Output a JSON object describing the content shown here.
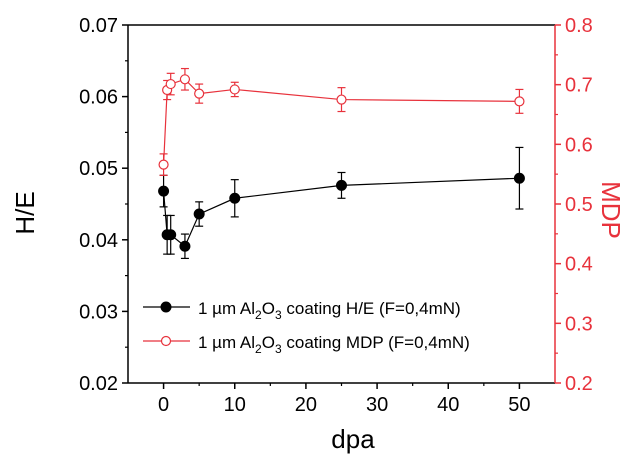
{
  "chart_data": {
    "type": "line",
    "xlabel": "dpa",
    "ylabel_left": "H/E",
    "ylabel_right": "MDP",
    "xlim": [
      -5,
      55
    ],
    "ylim_left": [
      0.02,
      0.07
    ],
    "ylim_right": [
      0.2,
      0.8
    ],
    "x_ticks": [
      0,
      10,
      20,
      30,
      40,
      50
    ],
    "y_ticks_left": [
      "0.02",
      "0.03",
      "0.04",
      "0.05",
      "0.06",
      "0.07"
    ],
    "y_ticks_right": [
      "0.2",
      "0.3",
      "0.4",
      "0.5",
      "0.6",
      "0.7",
      "0.8"
    ],
    "legend_position": "lower-center",
    "colors": {
      "left_axis": "#000000",
      "right_axis": "#e8323c",
      "he_series": "#000000",
      "mdp_series": "#e8323c"
    },
    "series": [
      {
        "key": "he",
        "name": "1 µm Al₂O₃ coating H/E (F=0,4mN)",
        "legend": {
          "pre": "1 µm Al",
          "sub1": "2",
          "mid": "O",
          "sub2": "3",
          "post": " coating H/E (F=0,4mN)"
        },
        "axis": "left",
        "marker": "filled-circle",
        "x": [
          0,
          0.5,
          1,
          3,
          5,
          10,
          25,
          50
        ],
        "y": [
          0.0468,
          0.0407,
          0.0407,
          0.0391,
          0.0436,
          0.0458,
          0.0476,
          0.0486
        ],
        "err": [
          0.0022,
          0.0027,
          0.0027,
          0.0017,
          0.0017,
          0.0026,
          0.0018,
          0.0043
        ]
      },
      {
        "key": "mdp",
        "name": "1 µm Al₂O₃ coating MDP (F=0,4mN)",
        "legend": {
          "pre": "1 µm Al",
          "sub1": "2",
          "mid": "O",
          "sub2": "3",
          "post": " coating MDP (F=0,4mN)"
        },
        "axis": "right",
        "marker": "open-circle",
        "x": [
          0,
          0.5,
          1,
          3,
          5,
          10,
          25,
          50
        ],
        "y": [
          0.566,
          0.691,
          0.701,
          0.709,
          0.685,
          0.692,
          0.675,
          0.672
        ],
        "err": [
          0.018,
          0.016,
          0.018,
          0.018,
          0.016,
          0.012,
          0.02,
          0.02
        ]
      }
    ]
  }
}
